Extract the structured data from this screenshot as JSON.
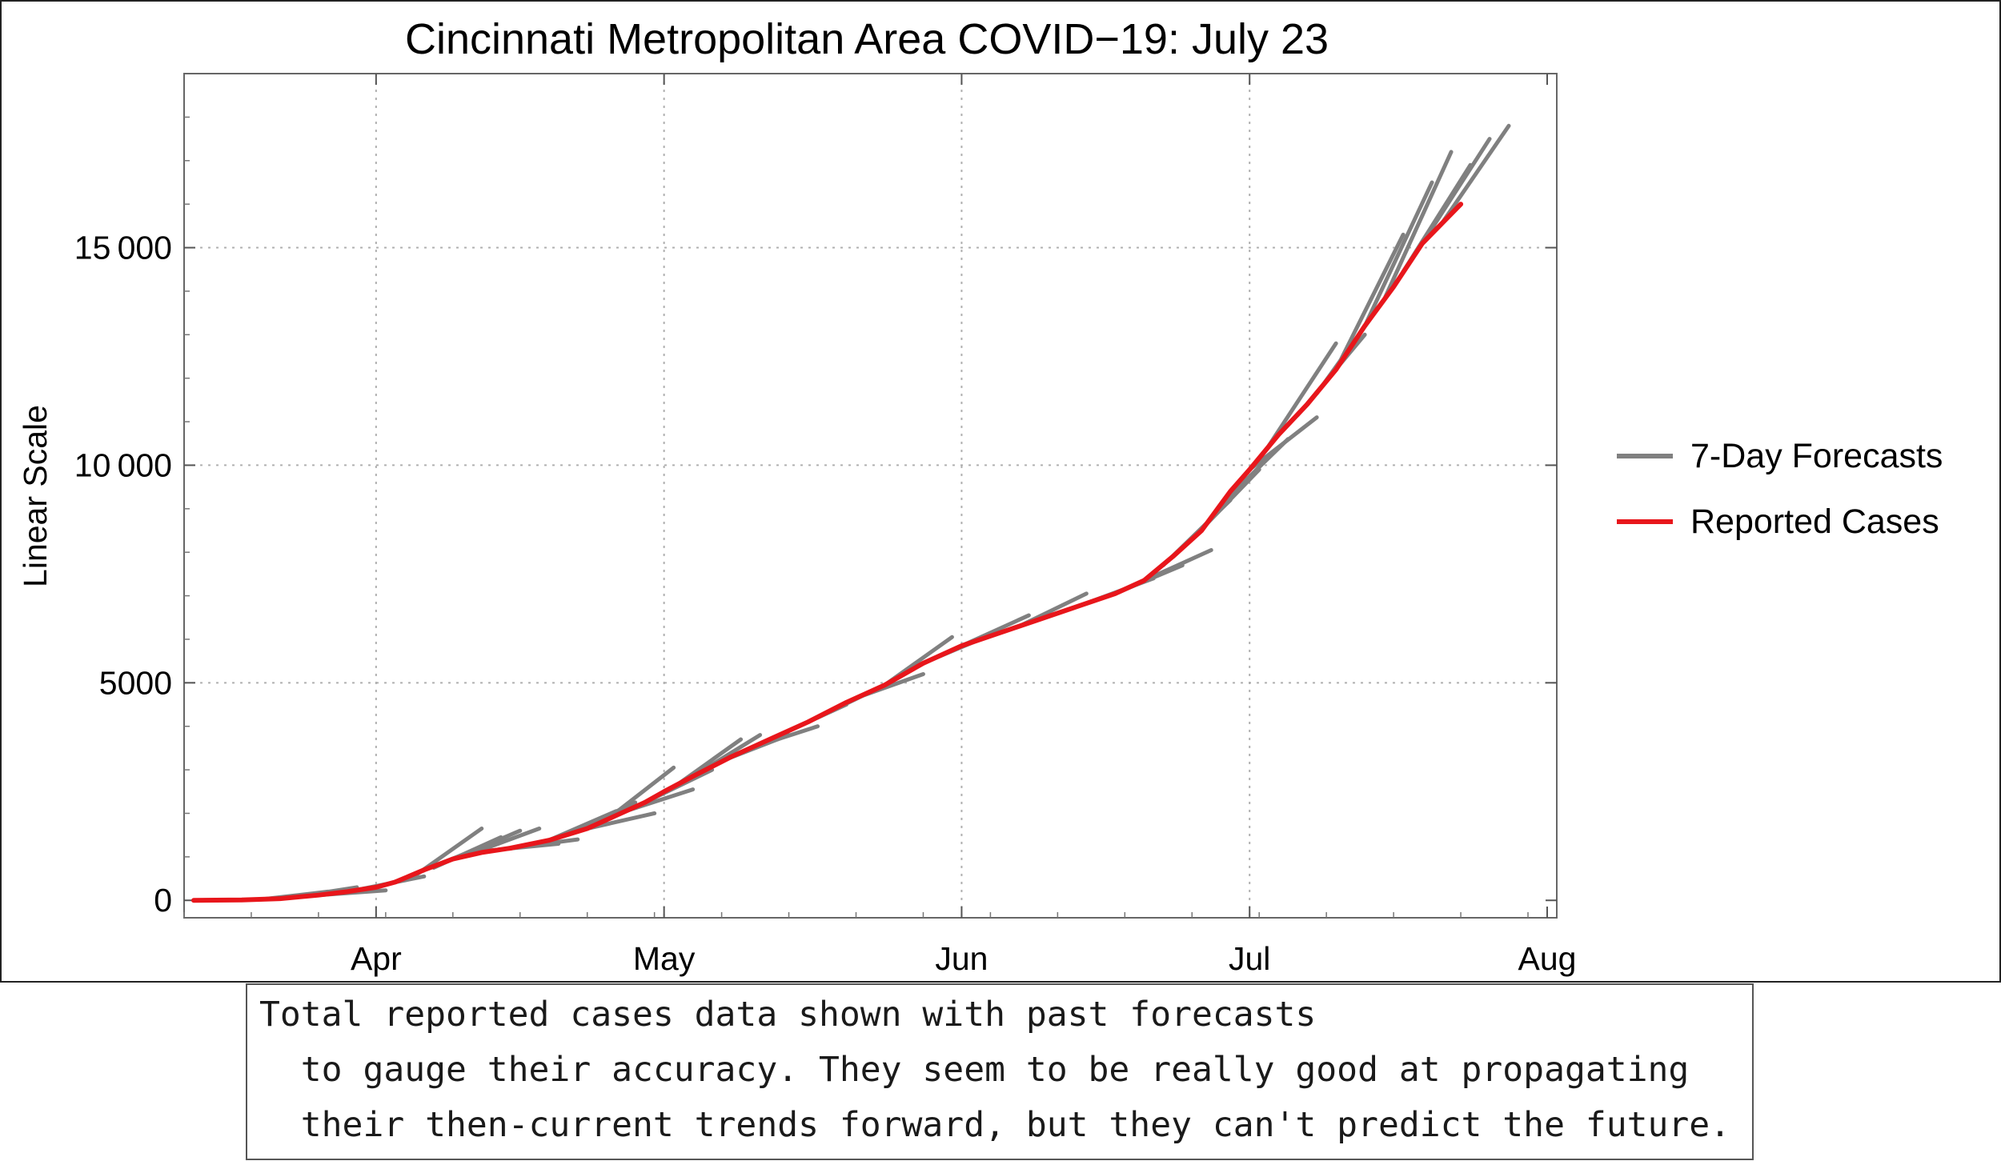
{
  "chart_data": {
    "type": "line",
    "title": "Cincinnati Metropolitan Area COVID−19: July 23",
    "xlabel": "",
    "ylabel": "Linear Scale",
    "x_unit": "date (2020)",
    "xlim": [
      "2020-03-12",
      "2020-08-02"
    ],
    "ylim": [
      -400,
      19000
    ],
    "x_ticks": [
      {
        "date": "2020-04-01",
        "label": "Apr"
      },
      {
        "date": "2020-05-01",
        "label": "May"
      },
      {
        "date": "2020-06-01",
        "label": "Jun"
      },
      {
        "date": "2020-07-01",
        "label": "Jul"
      },
      {
        "date": "2020-08-01",
        "label": "Aug"
      }
    ],
    "y_ticks": [
      {
        "value": 0,
        "label": "0"
      },
      {
        "value": 5000,
        "label": "5000"
      },
      {
        "value": 10000,
        "label": "10 000"
      },
      {
        "value": 15000,
        "label": "15 000"
      }
    ],
    "grid": true,
    "legend_position": "right",
    "series": [
      {
        "name": "Reported Cases",
        "color": "#e8161b",
        "points": [
          [
            "2020-03-13",
            0
          ],
          [
            "2020-03-18",
            10
          ],
          [
            "2020-03-22",
            40
          ],
          [
            "2020-03-26",
            120
          ],
          [
            "2020-03-29",
            200
          ],
          [
            "2020-04-01",
            300
          ],
          [
            "2020-04-03",
            420
          ],
          [
            "2020-04-06",
            700
          ],
          [
            "2020-04-09",
            950
          ],
          [
            "2020-04-12",
            1100
          ],
          [
            "2020-04-15",
            1200
          ],
          [
            "2020-04-19",
            1380
          ],
          [
            "2020-04-23",
            1650
          ],
          [
            "2020-04-26",
            1950
          ],
          [
            "2020-04-29",
            2250
          ],
          [
            "2020-05-01",
            2500
          ],
          [
            "2020-05-04",
            2850
          ],
          [
            "2020-05-08",
            3300
          ],
          [
            "2020-05-12",
            3700
          ],
          [
            "2020-05-16",
            4100
          ],
          [
            "2020-05-20",
            4550
          ],
          [
            "2020-05-24",
            4950
          ],
          [
            "2020-05-28",
            5450
          ],
          [
            "2020-06-01",
            5850
          ],
          [
            "2020-06-05",
            6150
          ],
          [
            "2020-06-09",
            6450
          ],
          [
            "2020-06-13",
            6750
          ],
          [
            "2020-06-17",
            7050
          ],
          [
            "2020-06-20",
            7350
          ],
          [
            "2020-06-23",
            7900
          ],
          [
            "2020-06-26",
            8500
          ],
          [
            "2020-06-29",
            9400
          ],
          [
            "2020-07-01",
            9900
          ],
          [
            "2020-07-04",
            10700
          ],
          [
            "2020-07-07",
            11400
          ],
          [
            "2020-07-10",
            12200
          ],
          [
            "2020-07-13",
            13200
          ],
          [
            "2020-07-16",
            14100
          ],
          [
            "2020-07-19",
            15100
          ],
          [
            "2020-07-23",
            16000
          ]
        ]
      },
      {
        "name": "7-Day Forecasts",
        "color": "#808080",
        "segments": [
          [
            [
              "2020-03-20",
              20
            ],
            [
              "2020-03-27",
              200
            ]
          ],
          [
            [
              "2020-03-23",
              60
            ],
            [
              "2020-03-30",
              300
            ]
          ],
          [
            [
              "2020-03-26",
              120
            ],
            [
              "2020-04-02",
              230
            ]
          ],
          [
            [
              "2020-03-30",
              240
            ],
            [
              "2020-04-06",
              550
            ]
          ],
          [
            [
              "2020-04-03",
              430
            ],
            [
              "2020-04-10",
              1050
            ]
          ],
          [
            [
              "2020-04-05",
              560
            ],
            [
              "2020-04-12",
              1650
            ]
          ],
          [
            [
              "2020-04-07",
              750
            ],
            [
              "2020-04-14",
              1450
            ]
          ],
          [
            [
              "2020-04-09",
              950
            ],
            [
              "2020-04-16",
              1600
            ]
          ],
          [
            [
              "2020-04-11",
              1080
            ],
            [
              "2020-04-18",
              1650
            ]
          ],
          [
            [
              "2020-04-13",
              1150
            ],
            [
              "2020-04-20",
              1300
            ]
          ],
          [
            [
              "2020-04-15",
              1200
            ],
            [
              "2020-04-22",
              1400
            ]
          ],
          [
            [
              "2020-04-19",
              1380
            ],
            [
              "2020-04-26",
              2050
            ]
          ],
          [
            [
              "2020-04-21",
              1520
            ],
            [
              "2020-04-28",
              2250
            ]
          ],
          [
            [
              "2020-04-23",
              1650
            ],
            [
              "2020-04-30",
              2000
            ]
          ],
          [
            [
              "2020-04-25",
              1850
            ],
            [
              "2020-05-02",
              3050
            ]
          ],
          [
            [
              "2020-04-27",
              2050
            ],
            [
              "2020-05-04",
              2550
            ]
          ],
          [
            [
              "2020-04-29",
              2250
            ],
            [
              "2020-05-06",
              3000
            ]
          ],
          [
            [
              "2020-05-02",
              2600
            ],
            [
              "2020-05-09",
              3700
            ]
          ],
          [
            [
              "2020-05-04",
              2850
            ],
            [
              "2020-05-11",
              3800
            ]
          ],
          [
            [
              "2020-05-07",
              3200
            ],
            [
              "2020-05-14",
              3800
            ]
          ],
          [
            [
              "2020-05-10",
              3500
            ],
            [
              "2020-05-17",
              4000
            ]
          ],
          [
            [
              "2020-05-13",
              3800
            ],
            [
              "2020-05-20",
              4500
            ]
          ],
          [
            [
              "2020-05-17",
              4200
            ],
            [
              "2020-05-24",
              4950
            ]
          ],
          [
            [
              "2020-05-21",
              4650
            ],
            [
              "2020-05-28",
              5200
            ]
          ],
          [
            [
              "2020-05-24",
              4950
            ],
            [
              "2020-05-31",
              6050
            ]
          ],
          [
            [
              "2020-05-28",
              5450
            ],
            [
              "2020-06-04",
              6100
            ]
          ],
          [
            [
              "2020-06-01",
              5850
            ],
            [
              "2020-06-08",
              6550
            ]
          ],
          [
            [
              "2020-06-04",
              6080
            ],
            [
              "2020-06-11",
              6600
            ]
          ],
          [
            [
              "2020-06-07",
              6300
            ],
            [
              "2020-06-14",
              7050
            ]
          ],
          [
            [
              "2020-06-10",
              6530
            ],
            [
              "2020-06-17",
              7050
            ]
          ],
          [
            [
              "2020-06-14",
              6830
            ],
            [
              "2020-06-21",
              7400
            ]
          ],
          [
            [
              "2020-06-17",
              7050
            ],
            [
              "2020-06-24",
              7700
            ]
          ],
          [
            [
              "2020-06-20",
              7350
            ],
            [
              "2020-06-27",
              8050
            ]
          ],
          [
            [
              "2020-06-22",
              7700
            ],
            [
              "2020-06-29",
              9200
            ]
          ],
          [
            [
              "2020-06-25",
              8300
            ],
            [
              "2020-07-02",
              9900
            ]
          ],
          [
            [
              "2020-06-28",
              9100
            ],
            [
              "2020-07-05",
              10600
            ]
          ],
          [
            [
              "2020-07-01",
              9900
            ],
            [
              "2020-07-08",
              11100
            ]
          ],
          [
            [
              "2020-07-03",
              10450
            ],
            [
              "2020-07-10",
              12800
            ]
          ],
          [
            [
              "2020-07-06",
              11150
            ],
            [
              "2020-07-13",
              13000
            ]
          ],
          [
            [
              "2020-07-08",
              11650
            ],
            [
              "2020-07-15",
              13800
            ]
          ],
          [
            [
              "2020-07-10",
              12200
            ],
            [
              "2020-07-17",
              15300
            ]
          ],
          [
            [
              "2020-07-13",
              13200
            ],
            [
              "2020-07-20",
              16500
            ]
          ],
          [
            [
              "2020-07-15",
              13800
            ],
            [
              "2020-07-22",
              17200
            ]
          ],
          [
            [
              "2020-07-17",
              14450
            ],
            [
              "2020-07-24",
              16900
            ]
          ],
          [
            [
              "2020-07-19",
              15100
            ],
            [
              "2020-07-26",
              17500
            ]
          ],
          [
            [
              "2020-07-21",
              15550
            ],
            [
              "2020-07-28",
              17800
            ]
          ]
        ]
      }
    ]
  },
  "caption": {
    "lines": [
      "Total reported cases data shown with past forecasts",
      "  to gauge their accuracy. They seem to be really good at propagating",
      "  their then-current trends forward, but they can't predict the future."
    ]
  }
}
